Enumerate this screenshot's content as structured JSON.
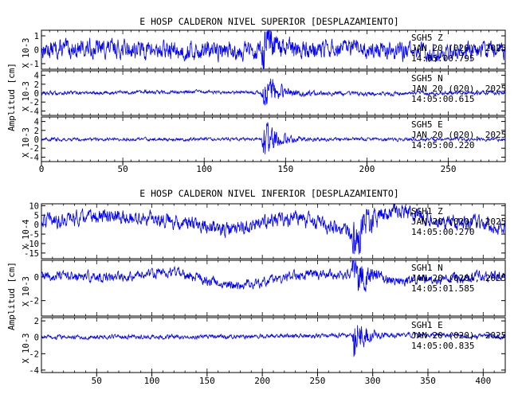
{
  "chart_data": [
    {
      "type": "line",
      "title": "E HOSP CALDERON NIVEL SUPERIOR [DESPLAZAMIENTO]",
      "ylabel": "Amplitud [cm]",
      "xlim": [
        0,
        285
      ],
      "x_ticks": [
        0,
        50,
        100,
        150,
        200,
        250
      ],
      "event_x": 137,
      "line_color": "#0000ff",
      "channels": [
        {
          "name": "SGH5 Z",
          "scale_label": "X 10-3",
          "ylim": [
            -1.4,
            1.4
          ],
          "y_ticks": [
            1,
            0,
            -1
          ],
          "date": "JAN 20 (020), 2025",
          "time": "14:05:00.795",
          "noise_amp": 0.55,
          "event_amp": 1.3,
          "event_decay": 6,
          "drift": [
            [
              0,
              0.0
            ],
            [
              40,
              0.1
            ],
            [
              90,
              -0.1
            ],
            [
              140,
              0.0
            ],
            [
              200,
              0.05
            ],
            [
              240,
              -0.2
            ],
            [
              285,
              0.15
            ]
          ]
        },
        {
          "name": "SGH5 N",
          "scale_label": "X 10-3",
          "ylim": [
            -5,
            5
          ],
          "y_ticks": [
            4,
            2,
            0,
            -2,
            -4
          ],
          "date": "JAN 20 (020), 2025",
          "time": "14:05:00.615",
          "noise_amp": 0.35,
          "event_amp": 4.0,
          "event_decay": 8,
          "drift": [
            [
              0,
              0.0
            ],
            [
              100,
              0.3
            ],
            [
              200,
              -0.2
            ],
            [
              285,
              0.1
            ]
          ]
        },
        {
          "name": "SGH5 E",
          "scale_label": "X 10-3",
          "ylim": [
            -5,
            5
          ],
          "y_ticks": [
            4,
            2,
            0,
            -2,
            -4
          ],
          "date": "JAN 20 (020), 2025",
          "time": "14:05:00.220",
          "noise_amp": 0.3,
          "event_amp": 4.2,
          "event_decay": 7,
          "drift": [
            [
              0,
              0.0
            ],
            [
              150,
              0.0
            ],
            [
              285,
              0.0
            ]
          ]
        }
      ]
    },
    {
      "type": "line",
      "title": "E HOSP CALDERON NIVEL INFERIOR [DESPLAZAMIENTO]",
      "ylabel": "Amplitud [cm]",
      "xlim": [
        0,
        420
      ],
      "x_ticks": [
        50,
        100,
        150,
        200,
        250,
        300,
        350,
        400
      ],
      "event_x": 283,
      "line_color": "#0000ff",
      "channels": [
        {
          "name": "SGH1 Z",
          "scale_label": "X 10-4",
          "ylim": [
            -18,
            11
          ],
          "y_ticks": [
            10,
            5,
            0,
            -5,
            -10,
            -15
          ],
          "date": "JAN 20 (020), 2025",
          "time": "14:05:00.270",
          "noise_amp": 3.2,
          "event_amp": 12,
          "event_decay": 10,
          "drift": [
            [
              0,
              2
            ],
            [
              50,
              4
            ],
            [
              110,
              3
            ],
            [
              170,
              -3
            ],
            [
              230,
              4
            ],
            [
              280,
              -4
            ],
            [
              320,
              8
            ],
            [
              360,
              2
            ],
            [
              420,
              -1
            ]
          ]
        },
        {
          "name": "SGH1 N",
          "scale_label": "X 10-3",
          "ylim": [
            -3.3,
            1.4
          ],
          "y_ticks": [
            0,
            -2
          ],
          "date": "JAN 20 (020), 2025",
          "time": "14:05:01.585",
          "noise_amp": 0.35,
          "event_amp": 1.8,
          "event_decay": 9,
          "drift": [
            [
              0,
              0.0
            ],
            [
              60,
              0.0
            ],
            [
              120,
              0.4
            ],
            [
              175,
              -0.8
            ],
            [
              230,
              0.1
            ],
            [
              280,
              0.3
            ],
            [
              330,
              -0.3
            ],
            [
              420,
              0.1
            ]
          ]
        },
        {
          "name": "SGH1 E",
          "scale_label": "X 10-3",
          "ylim": [
            -4.3,
            2.4
          ],
          "y_ticks": [
            2,
            0,
            -2,
            -4
          ],
          "date": "JAN 20 (020), 2025",
          "time": "14:05:00.835",
          "noise_amp": 0.22,
          "event_amp": 3.6,
          "event_decay": 7,
          "drift": [
            [
              0,
              0.0
            ],
            [
              200,
              0.1
            ],
            [
              330,
              0.3
            ],
            [
              420,
              0.1
            ]
          ]
        }
      ]
    }
  ]
}
